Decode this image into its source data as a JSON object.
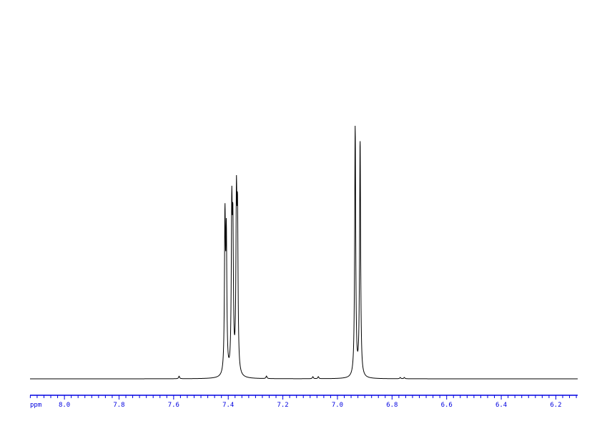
{
  "chart_data": {
    "type": "line",
    "title": "",
    "xlabel": "ppm",
    "ylabel": "",
    "xlim": [
      8.126,
      6.12
    ],
    "x_reversed": true,
    "ylim": [
      0,
      100
    ],
    "grid": false,
    "tick_labels": [
      "8.0",
      "7.8",
      "7.6",
      "7.4",
      "7.2",
      "7.0",
      "6.8",
      "6.6",
      "6.4",
      "6.2"
    ],
    "tick_values": [
      8.0,
      7.8,
      7.6,
      7.4,
      7.2,
      7.0,
      6.8,
      6.6,
      6.4,
      6.2
    ],
    "minor_tick_step": 0.025,
    "series": [
      {
        "peaks_ppm": [
          7.58,
          7.412,
          7.407,
          7.387,
          7.383,
          7.37,
          7.366,
          7.26,
          7.09,
          7.07,
          6.935,
          6.917,
          6.77,
          6.755
        ],
        "peaks_intensity": [
          1.0,
          60,
          52,
          61,
          52,
          64,
          57,
          1.0,
          0.8,
          0.8,
          100,
          93.5,
          0.5,
          0.5
        ]
      }
    ],
    "colors": {
      "trace": "#000000",
      "axis": "#0000e0"
    }
  }
}
